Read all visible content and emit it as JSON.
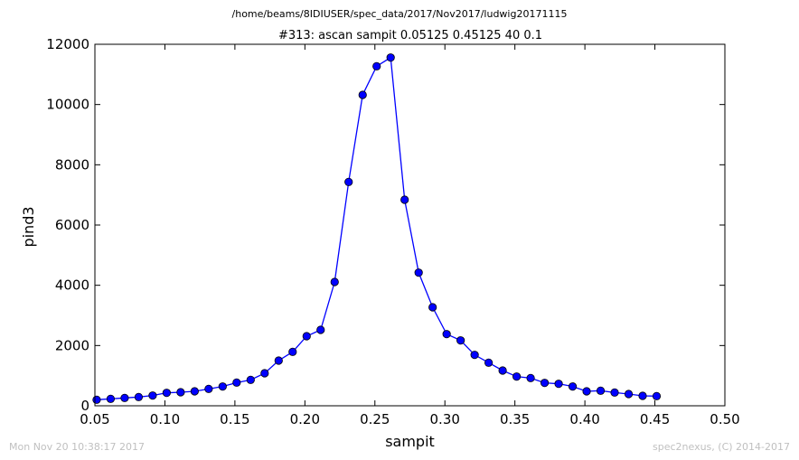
{
  "suptitle": "/home/beams/8IDIUSER/spec_data/2017/Nov2017/ludwig20171115",
  "footer": {
    "timestamp": "Mon Nov 20 10:38:17 2017",
    "credit": "spec2nexus, (C) 2014-2017"
  },
  "chart_data": {
    "type": "line",
    "title": "#313: ascan  sampit 0.05125 0.45125  40 0.1",
    "xlabel": "sampit",
    "ylabel": "pind3",
    "xlim": [
      0.05,
      0.5
    ],
    "ylim": [
      0,
      12000
    ],
    "xticks": [
      "0.05",
      "0.10",
      "0.15",
      "0.20",
      "0.25",
      "0.30",
      "0.35",
      "0.40",
      "0.45",
      "0.50"
    ],
    "yticks": [
      "0",
      "2000",
      "4000",
      "6000",
      "8000",
      "10000",
      "12000"
    ],
    "grid": false,
    "marker": "circle",
    "color": "#0000ff",
    "series": [
      {
        "x": [
          0.05125,
          0.06125,
          0.07125,
          0.08125,
          0.09125,
          0.10125,
          0.11125,
          0.12125,
          0.13125,
          0.14125,
          0.15125,
          0.16125,
          0.17125,
          0.18125,
          0.19125,
          0.20125,
          0.21125,
          0.22125,
          0.23125,
          0.24125,
          0.25125,
          0.26125,
          0.27125,
          0.28125,
          0.29125,
          0.30125,
          0.31125,
          0.32125,
          0.33125,
          0.34125,
          0.35125,
          0.36125,
          0.37125,
          0.38125,
          0.39125,
          0.40125,
          0.41125,
          0.42125,
          0.43125,
          0.44125,
          0.45125
        ],
        "y": [
          200,
          230,
          260,
          290,
          340,
          430,
          450,
          480,
          560,
          640,
          770,
          860,
          1080,
          1500,
          1790,
          2310,
          2520,
          4110,
          7430,
          10320,
          11270,
          11560,
          6840,
          4420,
          3270,
          2380,
          2170,
          1690,
          1430,
          1170,
          970,
          920,
          760,
          730,
          640,
          480,
          500,
          440,
          390,
          330,
          320
        ]
      }
    ]
  }
}
